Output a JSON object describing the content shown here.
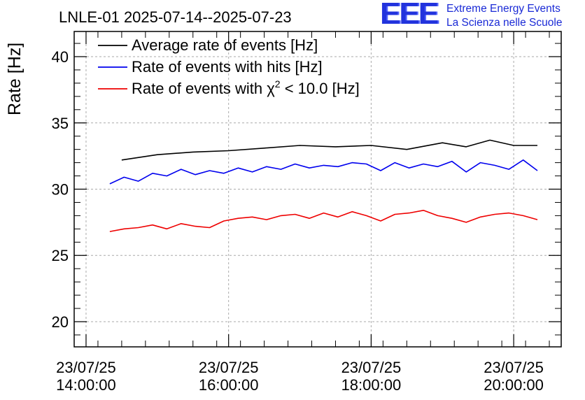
{
  "logo": {
    "mark": "EEE",
    "line1": "Extreme Energy Events",
    "line2": "La Scienza nelle Scuole",
    "color": "#1a2ad6"
  },
  "chart_data": {
    "type": "line",
    "title": "LNLE-01 2025-07-14--2025-07-23",
    "ylabel": "Rate [Hz]",
    "xlabel": "",
    "ylim": [
      18.1,
      41.9
    ],
    "xlim": [
      "13:50",
      "20:40"
    ],
    "yticks": [
      20,
      25,
      30,
      35,
      40
    ],
    "xticks": [
      {
        "time": "14:00",
        "line1": "23/07/25",
        "line2": "14:00:00"
      },
      {
        "time": "16:00",
        "line1": "23/07/25",
        "line2": "16:00:00"
      },
      {
        "time": "18:00",
        "line1": "23/07/25",
        "line2": "18:00:00"
      },
      {
        "time": "20:00",
        "line1": "23/07/25",
        "line2": "20:00:00"
      }
    ],
    "grid": true,
    "legend_position": "top-left",
    "series": [
      {
        "name": "Average rate of events [Hz]",
        "legend_text": "Average rate of events [Hz]",
        "color": "#000000",
        "x": [
          "14:30",
          "15:00",
          "15:30",
          "16:00",
          "16:30",
          "17:00",
          "17:30",
          "18:00",
          "18:30",
          "19:00",
          "19:20",
          "19:40",
          "20:00",
          "20:20"
        ],
        "values": [
          32.2,
          32.6,
          32.8,
          32.9,
          33.1,
          33.3,
          33.2,
          33.3,
          33.0,
          33.5,
          33.2,
          33.7,
          33.3,
          33.3
        ]
      },
      {
        "name": "Rate of events with hits [Hz]",
        "legend_text": "Rate of events with hits [Hz]",
        "color": "#0000ee",
        "x": [
          "14:20",
          "14:32",
          "14:44",
          "14:56",
          "15:08",
          "15:20",
          "15:32",
          "15:44",
          "15:56",
          "16:08",
          "16:20",
          "16:32",
          "16:44",
          "16:56",
          "17:08",
          "17:20",
          "17:32",
          "17:44",
          "17:56",
          "18:08",
          "18:20",
          "18:32",
          "18:44",
          "18:56",
          "19:08",
          "19:20",
          "19:32",
          "19:44",
          "19:56",
          "20:08",
          "20:20"
        ],
        "values": [
          30.4,
          30.9,
          30.6,
          31.2,
          31.0,
          31.5,
          31.1,
          31.4,
          31.2,
          31.6,
          31.3,
          31.7,
          31.5,
          31.9,
          31.6,
          31.8,
          31.7,
          32.0,
          31.9,
          31.4,
          32.0,
          31.6,
          31.9,
          31.7,
          32.1,
          31.3,
          32.0,
          31.8,
          31.5,
          32.2,
          31.4
        ]
      },
      {
        "name": "Rate of events with chi2 < 10.0 [Hz]",
        "legend_prefix": "Rate of events with ",
        "legend_symbol": "χ",
        "legend_sup": "2",
        "legend_suffix": " < 10.0 [Hz]",
        "color": "#ee0000",
        "x": [
          "14:20",
          "14:32",
          "14:44",
          "14:56",
          "15:08",
          "15:20",
          "15:32",
          "15:44",
          "15:56",
          "16:08",
          "16:20",
          "16:32",
          "16:44",
          "16:56",
          "17:08",
          "17:20",
          "17:32",
          "17:44",
          "17:56",
          "18:08",
          "18:20",
          "18:32",
          "18:44",
          "18:56",
          "19:08",
          "19:20",
          "19:32",
          "19:44",
          "19:56",
          "20:08",
          "20:20"
        ],
        "values": [
          26.8,
          27.0,
          27.1,
          27.3,
          27.0,
          27.4,
          27.2,
          27.1,
          27.6,
          27.8,
          27.9,
          27.7,
          28.0,
          28.1,
          27.8,
          28.2,
          27.9,
          28.3,
          28.0,
          27.6,
          28.1,
          28.2,
          28.4,
          28.0,
          27.8,
          27.5,
          27.9,
          28.1,
          28.2,
          28.0,
          27.7
        ]
      }
    ]
  }
}
